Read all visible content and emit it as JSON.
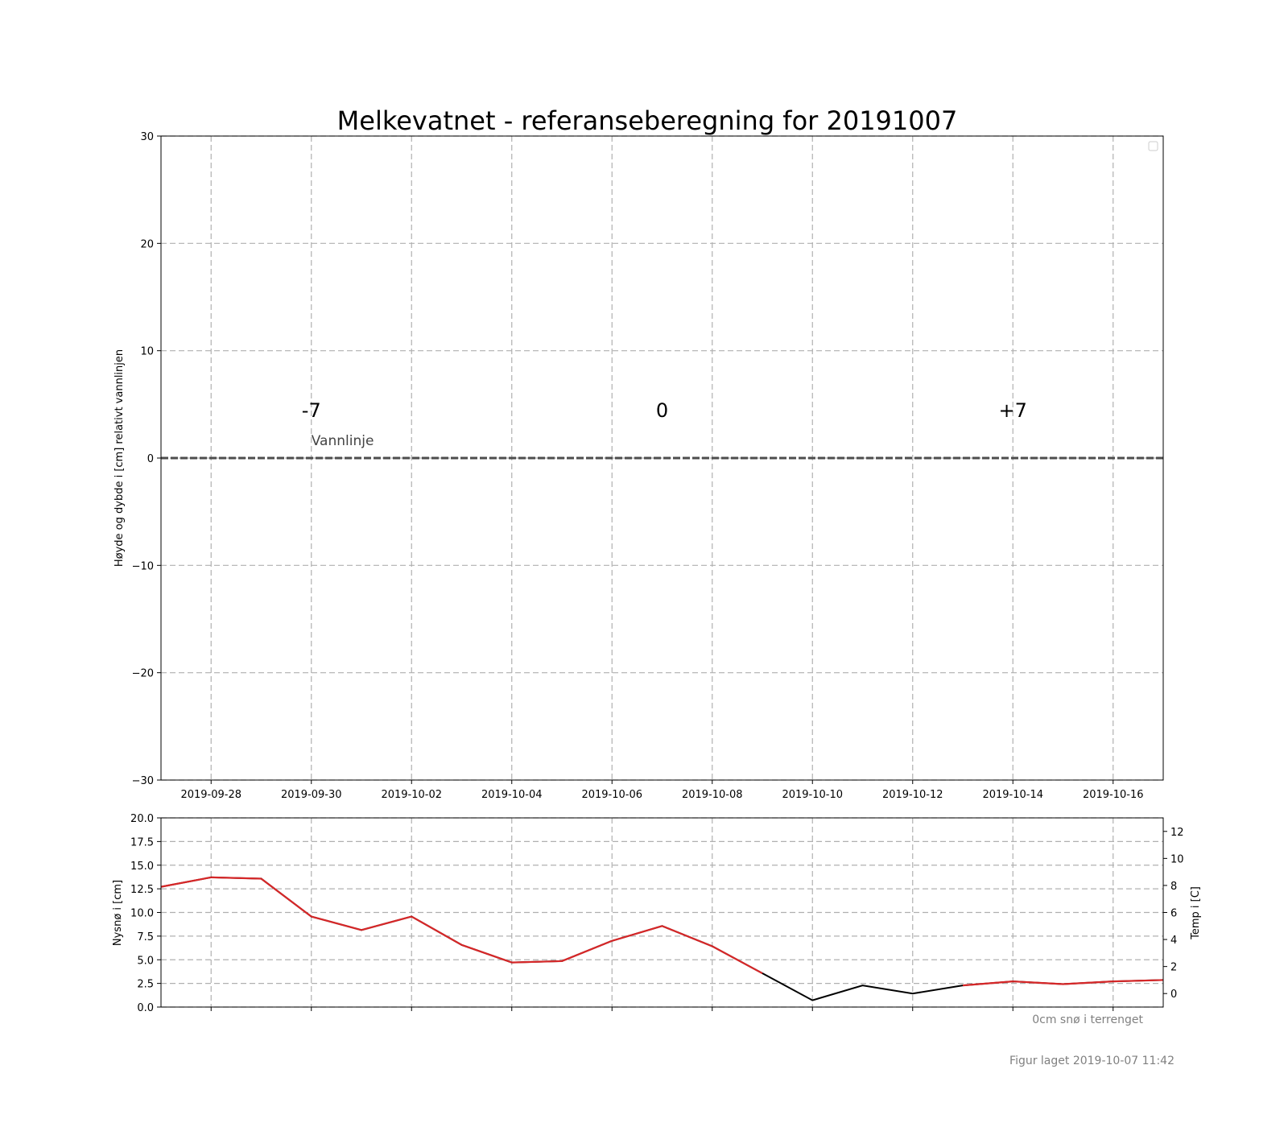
{
  "page": {
    "footer_snow": "0cm snø i terrenget",
    "footer_created": "Figur laget 2019-10-07 11:42"
  },
  "chart_data": [
    {
      "type": "line",
      "title": "Melkevatnet - referanseberegning for 20191007",
      "ylabel": "Høyde og dybde i [cm] relativt vannlinjen",
      "xlabel": "",
      "xlim": [
        "2019-09-27",
        "2019-10-17"
      ],
      "ylim": [
        -30,
        30
      ],
      "x_ticks": [
        "2019-09-28",
        "2019-09-30",
        "2019-10-02",
        "2019-10-04",
        "2019-10-06",
        "2019-10-08",
        "2019-10-10",
        "2019-10-12",
        "2019-10-14",
        "2019-10-16"
      ],
      "y_ticks": [
        -30,
        -20,
        -10,
        0,
        10,
        20,
        30
      ],
      "y_tick_labels": [
        "−30",
        "−20",
        "−10",
        "0",
        "10",
        "20",
        "30"
      ],
      "grid": true,
      "legend": "top-right, empty",
      "annotations": [
        {
          "text": "-7",
          "x": "2019-09-30",
          "y": 4.5
        },
        {
          "text": "0",
          "x": "2019-10-07",
          "y": 4.5
        },
        {
          "text": "+7",
          "x": "2019-10-14",
          "y": 4.5
        },
        {
          "text": "Vannlinje",
          "x": "2019-09-30",
          "y": 1.2
        }
      ],
      "water_line": {
        "y": 0,
        "color": "#4d4d4d",
        "style": "dashed"
      }
    },
    {
      "type": "line",
      "title": "",
      "ylabel": "Nysnø i [cm]",
      "ylabel_right": "Temp i [C]",
      "xlim": [
        "2019-09-27",
        "2019-10-17"
      ],
      "ylim": [
        0,
        20
      ],
      "ylim_right": [
        -1,
        13
      ],
      "y_ticks": [
        0,
        2.5,
        5,
        7.5,
        10,
        12.5,
        15,
        17.5,
        20
      ],
      "y_tick_labels": [
        "0.0",
        "2.5",
        "5.0",
        "7.5",
        "10.0",
        "12.5",
        "15.0",
        "17.5",
        "20.0"
      ],
      "y_ticks_right": [
        0,
        2,
        4,
        6,
        8,
        10,
        12
      ],
      "grid": true,
      "series": [
        {
          "axis": "right",
          "color_above_zero": "#d62728",
          "color_below": "#000000",
          "x": [
            "2019-09-27",
            "2019-09-28",
            "2019-09-29",
            "2019-09-30",
            "2019-10-01",
            "2019-10-02",
            "2019-10-03",
            "2019-10-04",
            "2019-10-05",
            "2019-10-06",
            "2019-10-07",
            "2019-10-08",
            "2019-10-09",
            "2019-10-10",
            "2019-10-11",
            "2019-10-12",
            "2019-10-13",
            "2019-10-14",
            "2019-10-15",
            "2019-10-16",
            "2019-10-17"
          ],
          "values": [
            7.9,
            8.6,
            8.5,
            5.7,
            4.7,
            5.7,
            3.6,
            2.3,
            2.4,
            3.9,
            5.0,
            3.5,
            1.5,
            -0.5,
            0.6,
            0.0,
            0.6,
            0.9,
            0.7,
            0.9,
            1.0
          ]
        }
      ]
    }
  ]
}
